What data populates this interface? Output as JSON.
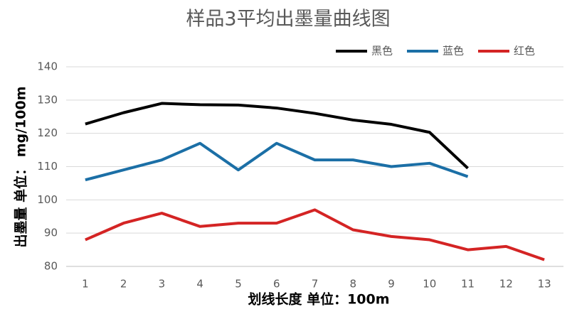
{
  "chart_data": {
    "type": "line",
    "title": "样品3平均出墨量曲线图",
    "xlabel": "划线长度 单位：100m",
    "ylabel": "出墨量 单位： mg/100m",
    "x": [
      1,
      2,
      3,
      4,
      5,
      6,
      7,
      8,
      9,
      10,
      11,
      12,
      13
    ],
    "series": [
      {
        "name": "黑色",
        "color": "#000000",
        "values": [
          122.8,
          126.2,
          129,
          128.6,
          128.5,
          127.6,
          126,
          124,
          122.7,
          120.3,
          109.5,
          null,
          null
        ]
      },
      {
        "name": "蓝色",
        "color": "#1b6fa6",
        "values": [
          106,
          109,
          112,
          117,
          109,
          117,
          112,
          112,
          110,
          111,
          107,
          null,
          null
        ]
      },
      {
        "name": "红色",
        "color": "#d42424",
        "values": [
          88,
          93,
          96,
          92,
          93,
          93,
          97,
          91,
          89,
          88,
          85,
          86,
          82
        ]
      }
    ],
    "xlim": [
      0.5,
      13.5
    ],
    "xticks": [
      1,
      2,
      3,
      4,
      5,
      6,
      7,
      8,
      9,
      10,
      11,
      12,
      13
    ],
    "ylim": [
      80,
      140
    ],
    "yticks": [
      80,
      90,
      100,
      110,
      120,
      130,
      140
    ],
    "grid": true,
    "legend": "top-right"
  }
}
